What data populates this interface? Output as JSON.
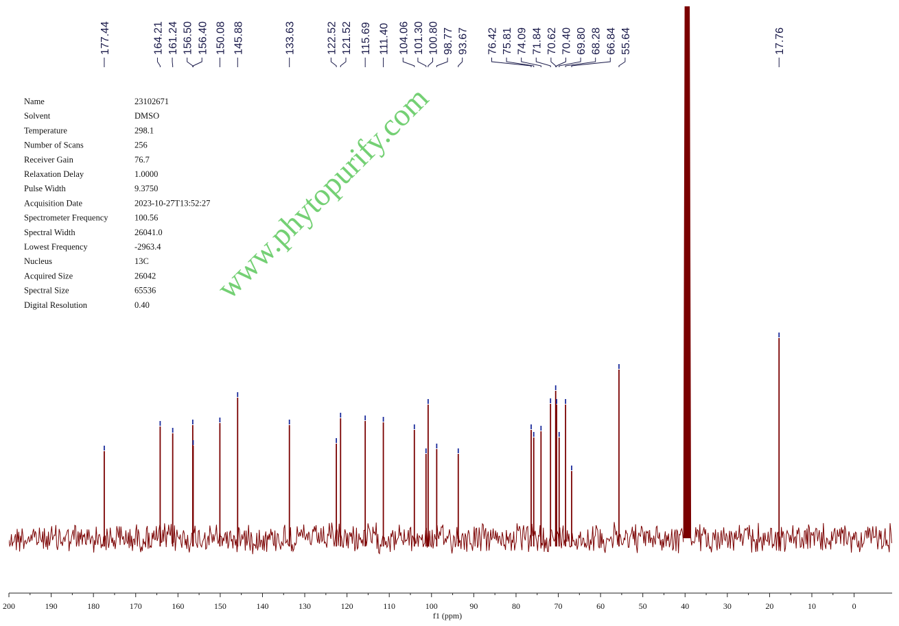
{
  "chart_data": {
    "type": "nmr",
    "x_label": "f1 (ppm)",
    "xlim": [
      200,
      -9
    ],
    "xticks": [
      200,
      190,
      180,
      170,
      160,
      150,
      140,
      130,
      120,
      110,
      100,
      90,
      80,
      70,
      60,
      50,
      40,
      30,
      20,
      10,
      0
    ],
    "ylim": [
      -77,
      775
    ],
    "color": "#7a0000",
    "marker_color": "#1a2a9a",
    "peaks": {
      "x": [
        177.44,
        164.21,
        161.24,
        156.5,
        156.4,
        150.08,
        145.88,
        133.63,
        122.52,
        121.52,
        115.69,
        111.4,
        104.06,
        101.3,
        100.8,
        98.77,
        93.67,
        76.42,
        75.81,
        74.09,
        71.84,
        70.62,
        70.4,
        69.8,
        68.28,
        66.84,
        55.64,
        17.76
      ],
      "labels": [
        "177.44",
        "164.21",
        "161.24",
        "156.50",
        "156.40",
        "150.08",
        "145.88",
        "133.63",
        "122.52",
        "121.52",
        "115.69",
        "111.40",
        "104.06",
        "101.30",
        "100.80",
        "98.77",
        "93.67",
        "76.42",
        "75.81",
        "74.09",
        "71.84",
        "70.62",
        "70.40",
        "69.80",
        "68.28",
        "66.84",
        "55.64",
        "17.76"
      ],
      "values": [
        127,
        163,
        153,
        165,
        135,
        168,
        205,
        165,
        138,
        175,
        171,
        169,
        158,
        123,
        195,
        130,
        123,
        158,
        147,
        156,
        196,
        215,
        195,
        147,
        195,
        98,
        246,
        292
      ]
    },
    "solvent_peak": {
      "x": 39.5,
      "value": 775
    },
    "watermark": "www.phytopurify.com",
    "parameters": [
      [
        "Name",
        "23102671"
      ],
      [
        "Solvent",
        "DMSO"
      ],
      [
        "Temperature",
        "298.1"
      ],
      [
        "Number of Scans",
        "256"
      ],
      [
        "Receiver Gain",
        "76.7"
      ],
      [
        "Relaxation Delay",
        "1.0000"
      ],
      [
        "Pulse Width",
        "9.3750"
      ],
      [
        "Acquisition Date",
        "2023-10-27T13:52:27"
      ],
      [
        "Spectrometer Frequency",
        "100.56"
      ],
      [
        "Spectral Width",
        "26041.0"
      ],
      [
        "Lowest Frequency",
        "-2963.4"
      ],
      [
        "Nucleus",
        "13C"
      ],
      [
        "Acquired Size",
        "26042"
      ],
      [
        "Spectral Size",
        "65536"
      ],
      [
        "Digital Resolution",
        "0.40"
      ]
    ]
  }
}
